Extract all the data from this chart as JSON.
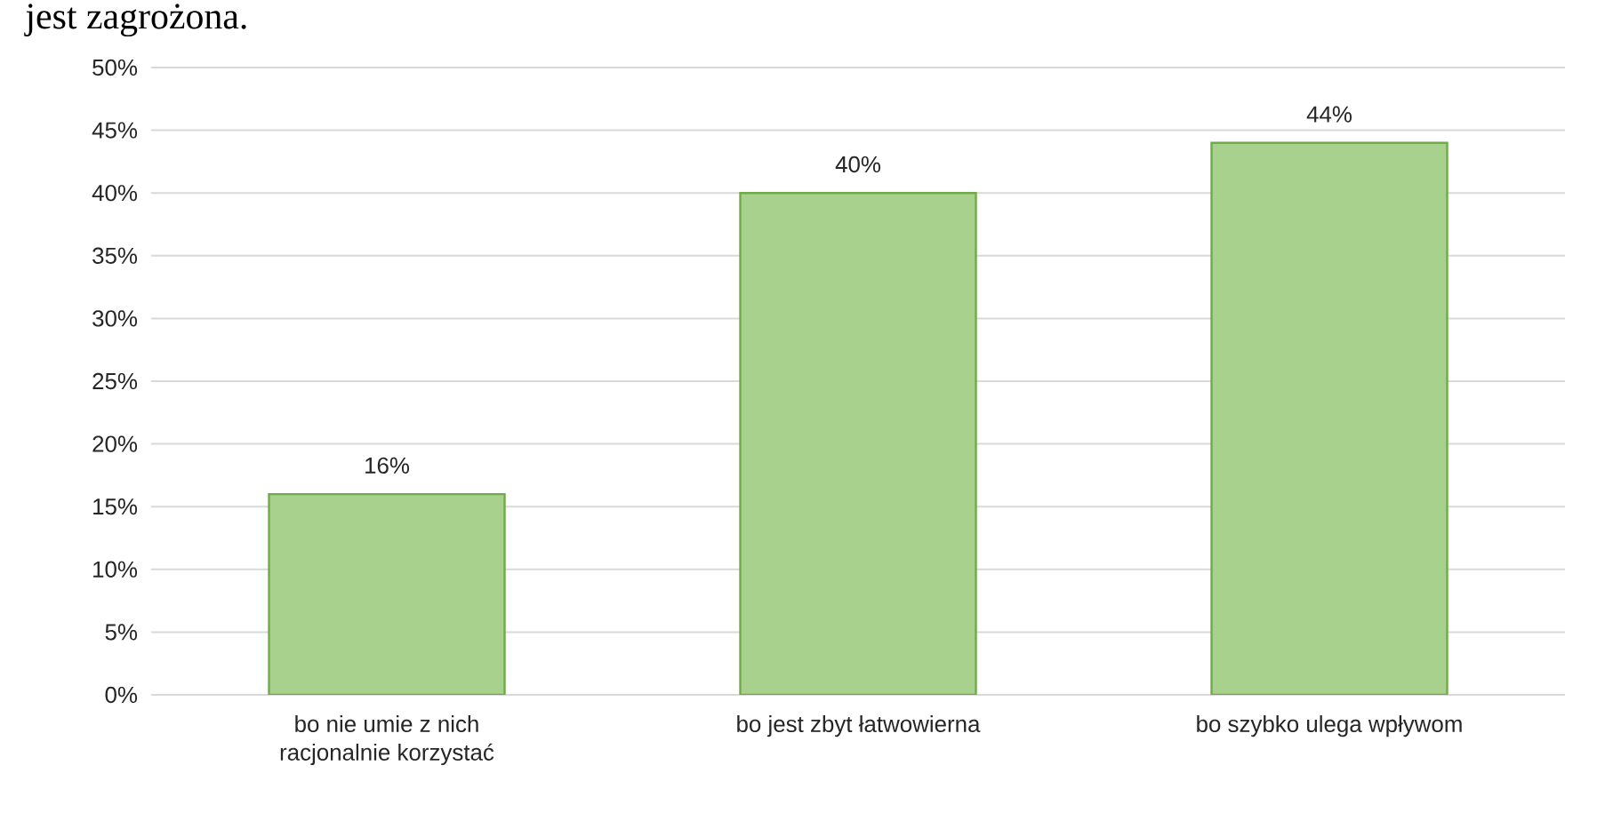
{
  "chart_data": {
    "type": "bar",
    "title": "jest zagrożona.",
    "categories": [
      "bo nie umie z nich racjonalnie korzystać",
      "bo jest zbyt łatwowierna",
      "bo szybko ulega wpływom"
    ],
    "series": [
      {
        "color": "#a9d18e",
        "values": [
          16,
          40,
          44
        ],
        "value_labels": [
          "16%",
          "40%",
          "44%"
        ]
      }
    ],
    "ylim": [
      0,
      50
    ],
    "yticks": [
      {
        "value": 0,
        "label": "0%"
      },
      {
        "value": 5,
        "label": "5%"
      },
      {
        "value": 10,
        "label": "10%"
      },
      {
        "value": 15,
        "label": "15%"
      },
      {
        "value": 20,
        "label": "20%"
      },
      {
        "value": 25,
        "label": "25%"
      },
      {
        "value": 30,
        "label": "30%"
      },
      {
        "value": 35,
        "label": "35%"
      },
      {
        "value": 40,
        "label": "40%"
      },
      {
        "value": 45,
        "label": "45%"
      },
      {
        "value": 50,
        "label": "50%"
      }
    ],
    "grid": "y"
  }
}
